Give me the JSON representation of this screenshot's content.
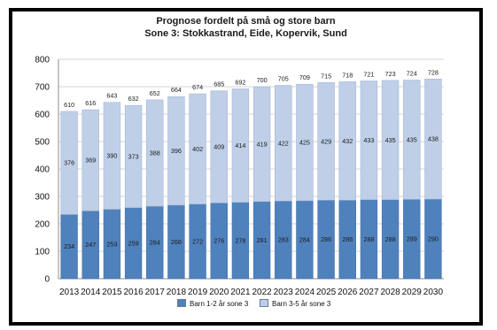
{
  "chart_data": {
    "type": "bar",
    "stacked": true,
    "title": "Prognose fordelt på små og store barn",
    "subtitle": "Sone 3: Stokkastrand, Eide, Kopervik, Sund",
    "categories": [
      "2013",
      "2014",
      "2015",
      "2016",
      "2017",
      "2018",
      "2019",
      "2020",
      "2021",
      "2022",
      "2023",
      "2024",
      "2025",
      "2026",
      "2027",
      "2028",
      "2029",
      "2030"
    ],
    "series": [
      {
        "name": "Barn 1-2 år sone 3",
        "color": "#4f81bd",
        "values": [
          234,
          247,
          253,
          259,
          264,
          268,
          272,
          276,
          278,
          281,
          283,
          284,
          286,
          286,
          288,
          288,
          289,
          290
        ]
      },
      {
        "name": "Barn 3-5 år sone 3",
        "color": "#bfcfe8",
        "values": [
          376,
          369,
          390,
          373,
          388,
          396,
          402,
          409,
          414,
          419,
          422,
          425,
          429,
          432,
          433,
          435,
          435,
          438
        ]
      }
    ],
    "totals": [
      610,
      616,
      643,
      632,
      652,
      664,
      674,
      685,
      692,
      700,
      705,
      709,
      715,
      718,
      721,
      723,
      724,
      728
    ],
    "ylim": [
      0,
      800
    ],
    "yticks": [
      0,
      100,
      200,
      300,
      400,
      500,
      600,
      700,
      800
    ],
    "grid": true,
    "legend": "bottom"
  }
}
